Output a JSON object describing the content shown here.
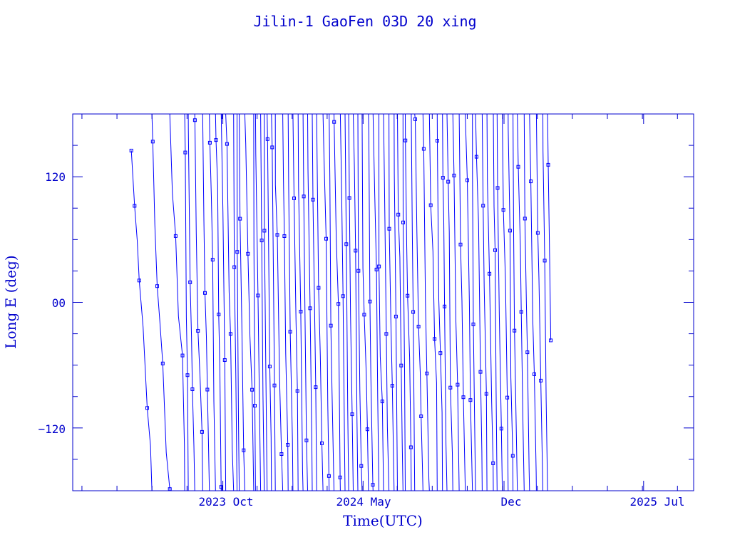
{
  "chart_data": {
    "type": "line",
    "title": "Jilin-1 GaoFen 03D 20 xing",
    "xlabel": "Time(UTC)",
    "ylabel": "Long E (deg)",
    "x_tick_labels": [
      "2023 Oct",
      "2024 May",
      "Dec",
      "2025 Jul"
    ],
    "y_tick_labels": [
      "120",
      "00",
      "−120"
    ],
    "x_range": [
      "2023-02-15",
      "2025-09-15"
    ],
    "ylim": [
      -180,
      180
    ],
    "y_ticks": [
      -120,
      0,
      120
    ],
    "series": [
      {
        "data_start": "2023-05-15",
        "data_end": "2025-02-10",
        "description_values": "sawtooth longitude track, wrapping -180 to 180",
        "dense_band_deg": [
          30,
          180
        ]
      }
    ],
    "colors": {
      "line": "#0000ff",
      "axes": "#0000cc",
      "text": "#0000cc"
    }
  }
}
